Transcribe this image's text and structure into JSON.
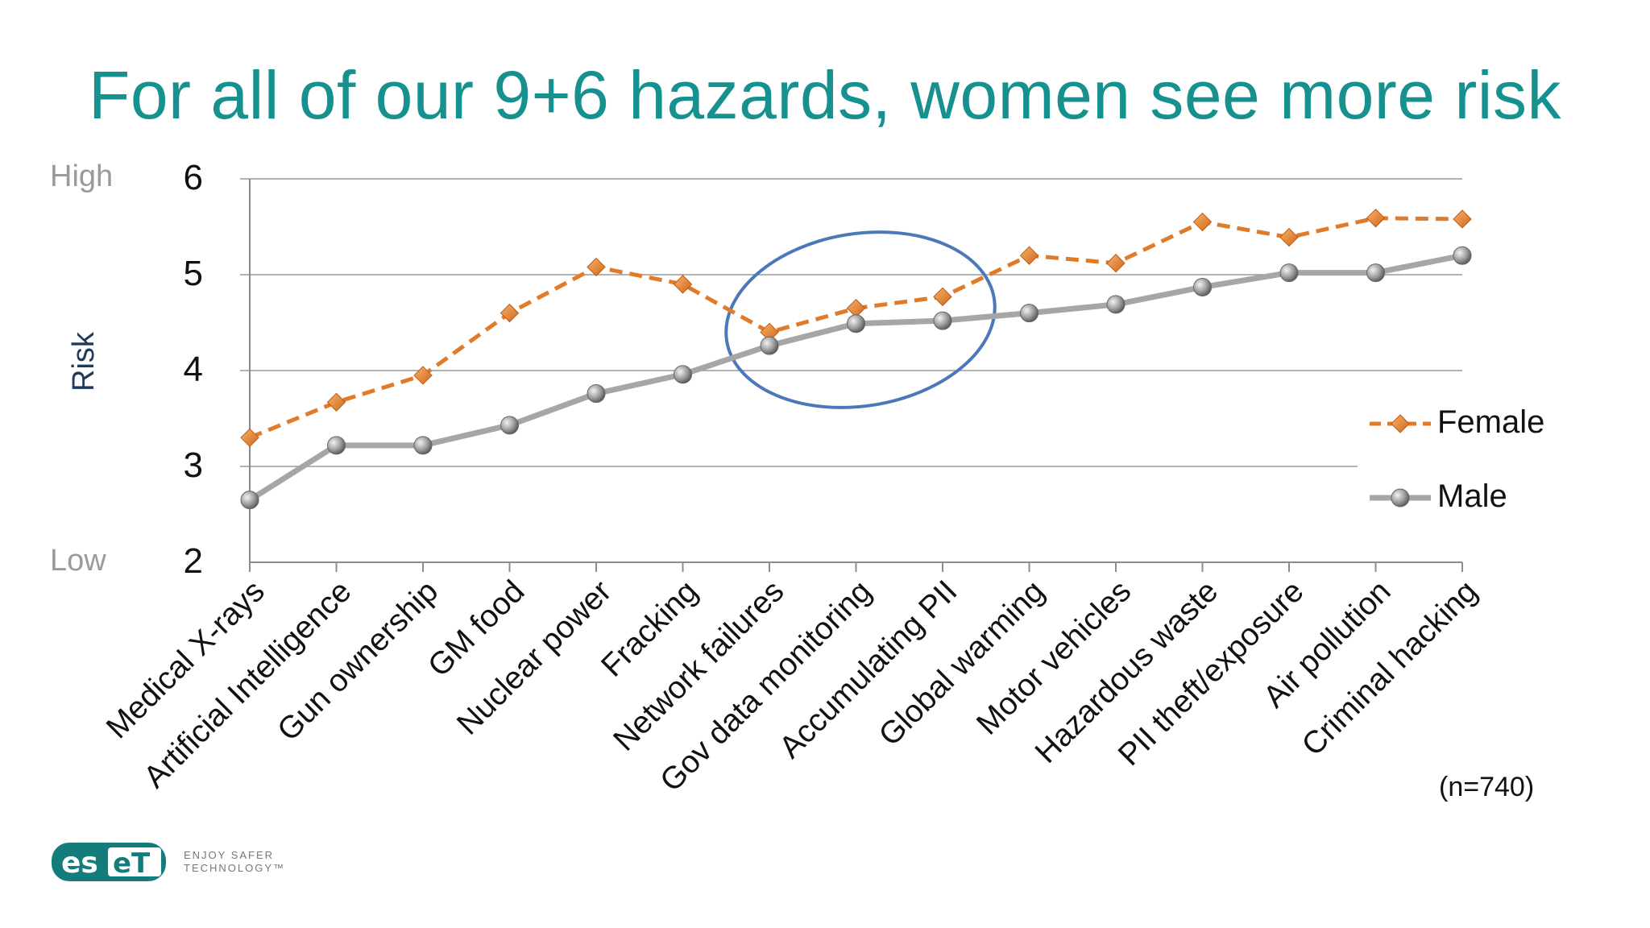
{
  "slide": {
    "title": "For all of our 9+6 hazards, women see more risk",
    "high_label": "High",
    "low_label": "Low",
    "y_axis_label": "Risk",
    "note": "(n=740)",
    "logo": {
      "brand": "eset",
      "tagline": "ENJOY SAFER\nTECHNOLOGY™"
    }
  },
  "chart_data": {
    "type": "line",
    "title": "",
    "xlabel": "",
    "ylabel": "Risk",
    "ylim": [
      2,
      6
    ],
    "yticks": [
      2,
      3,
      4,
      5,
      6
    ],
    "grid": true,
    "legend": "right",
    "categories": [
      "Medical X-rays",
      "Artificial Intelligence",
      "Gun ownership",
      "GM food",
      "Nuclear power",
      "Fracking",
      "Network failures",
      "Gov data monitoring",
      "Accumulating PII",
      "Global warming",
      "Motor vehicles",
      "Hazardous waste",
      "PII theft/exposure",
      "Air pollution",
      "Criminal hacking"
    ],
    "series": [
      {
        "name": "Female",
        "color": "#e07b2a",
        "style": "dashed",
        "marker": "diamond",
        "values": [
          3.3,
          3.67,
          3.95,
          4.6,
          5.08,
          4.9,
          4.4,
          4.65,
          4.77,
          5.2,
          5.12,
          5.55,
          5.39,
          5.59,
          5.58
        ]
      },
      {
        "name": "Male",
        "color": "#a6a6a6",
        "style": "solid",
        "marker": "circle",
        "values": [
          2.65,
          3.22,
          3.22,
          3.43,
          3.76,
          3.96,
          4.26,
          4.49,
          4.52,
          4.6,
          4.69,
          4.87,
          5.02,
          5.02,
          5.2
        ]
      }
    ],
    "annotation": {
      "shape": "ellipse",
      "color": "#4a78b8",
      "highlights": [
        "Network failures",
        "Gov data monitoring",
        "Accumulating PII"
      ]
    }
  }
}
